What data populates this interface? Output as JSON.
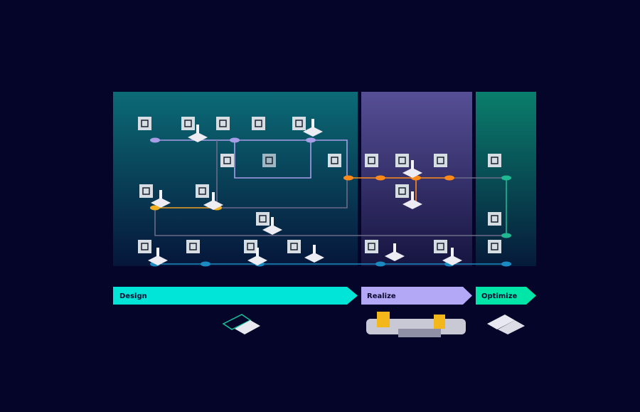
{
  "phases": [
    {
      "label": "Design",
      "color": "#00e5d8"
    },
    {
      "label": "Realize",
      "color": "#b3a8f5"
    },
    {
      "label": "Optimize",
      "color": "#00e6a8"
    }
  ],
  "colors": {
    "background": "#05052a",
    "design_panel": "#0a6a74",
    "realize_panel": "#544d92",
    "optimize_panel": "#0a7a6a",
    "design_line": "#a89ee8",
    "realize_line": "#ff8a1a",
    "optimize_line": "#1fb890",
    "gray_line": "#6b6b8a",
    "blue_line": "#1a8ac0"
  },
  "icons": [
    "settings-list-icon",
    "browser-window-icon",
    "v-model-icon",
    "handshake-icon",
    "checklist-document-icon",
    "clipboard-check-icon",
    "presentation-icon",
    "shuffle-icon",
    "calendar-grid-icon",
    "laptop-check-icon",
    "growth-chart-icon",
    "tools-icon",
    "device-person-icon",
    "hierarchy-icon",
    "check-box-icon",
    "dashboard-table-icon",
    "team-icon",
    "plant-hand-icon",
    "check-list-icon",
    "cloud-gauge-icon",
    "dollar-icon",
    "cycle-icon",
    "logistics-icon",
    "pie-chart-icon"
  ]
}
